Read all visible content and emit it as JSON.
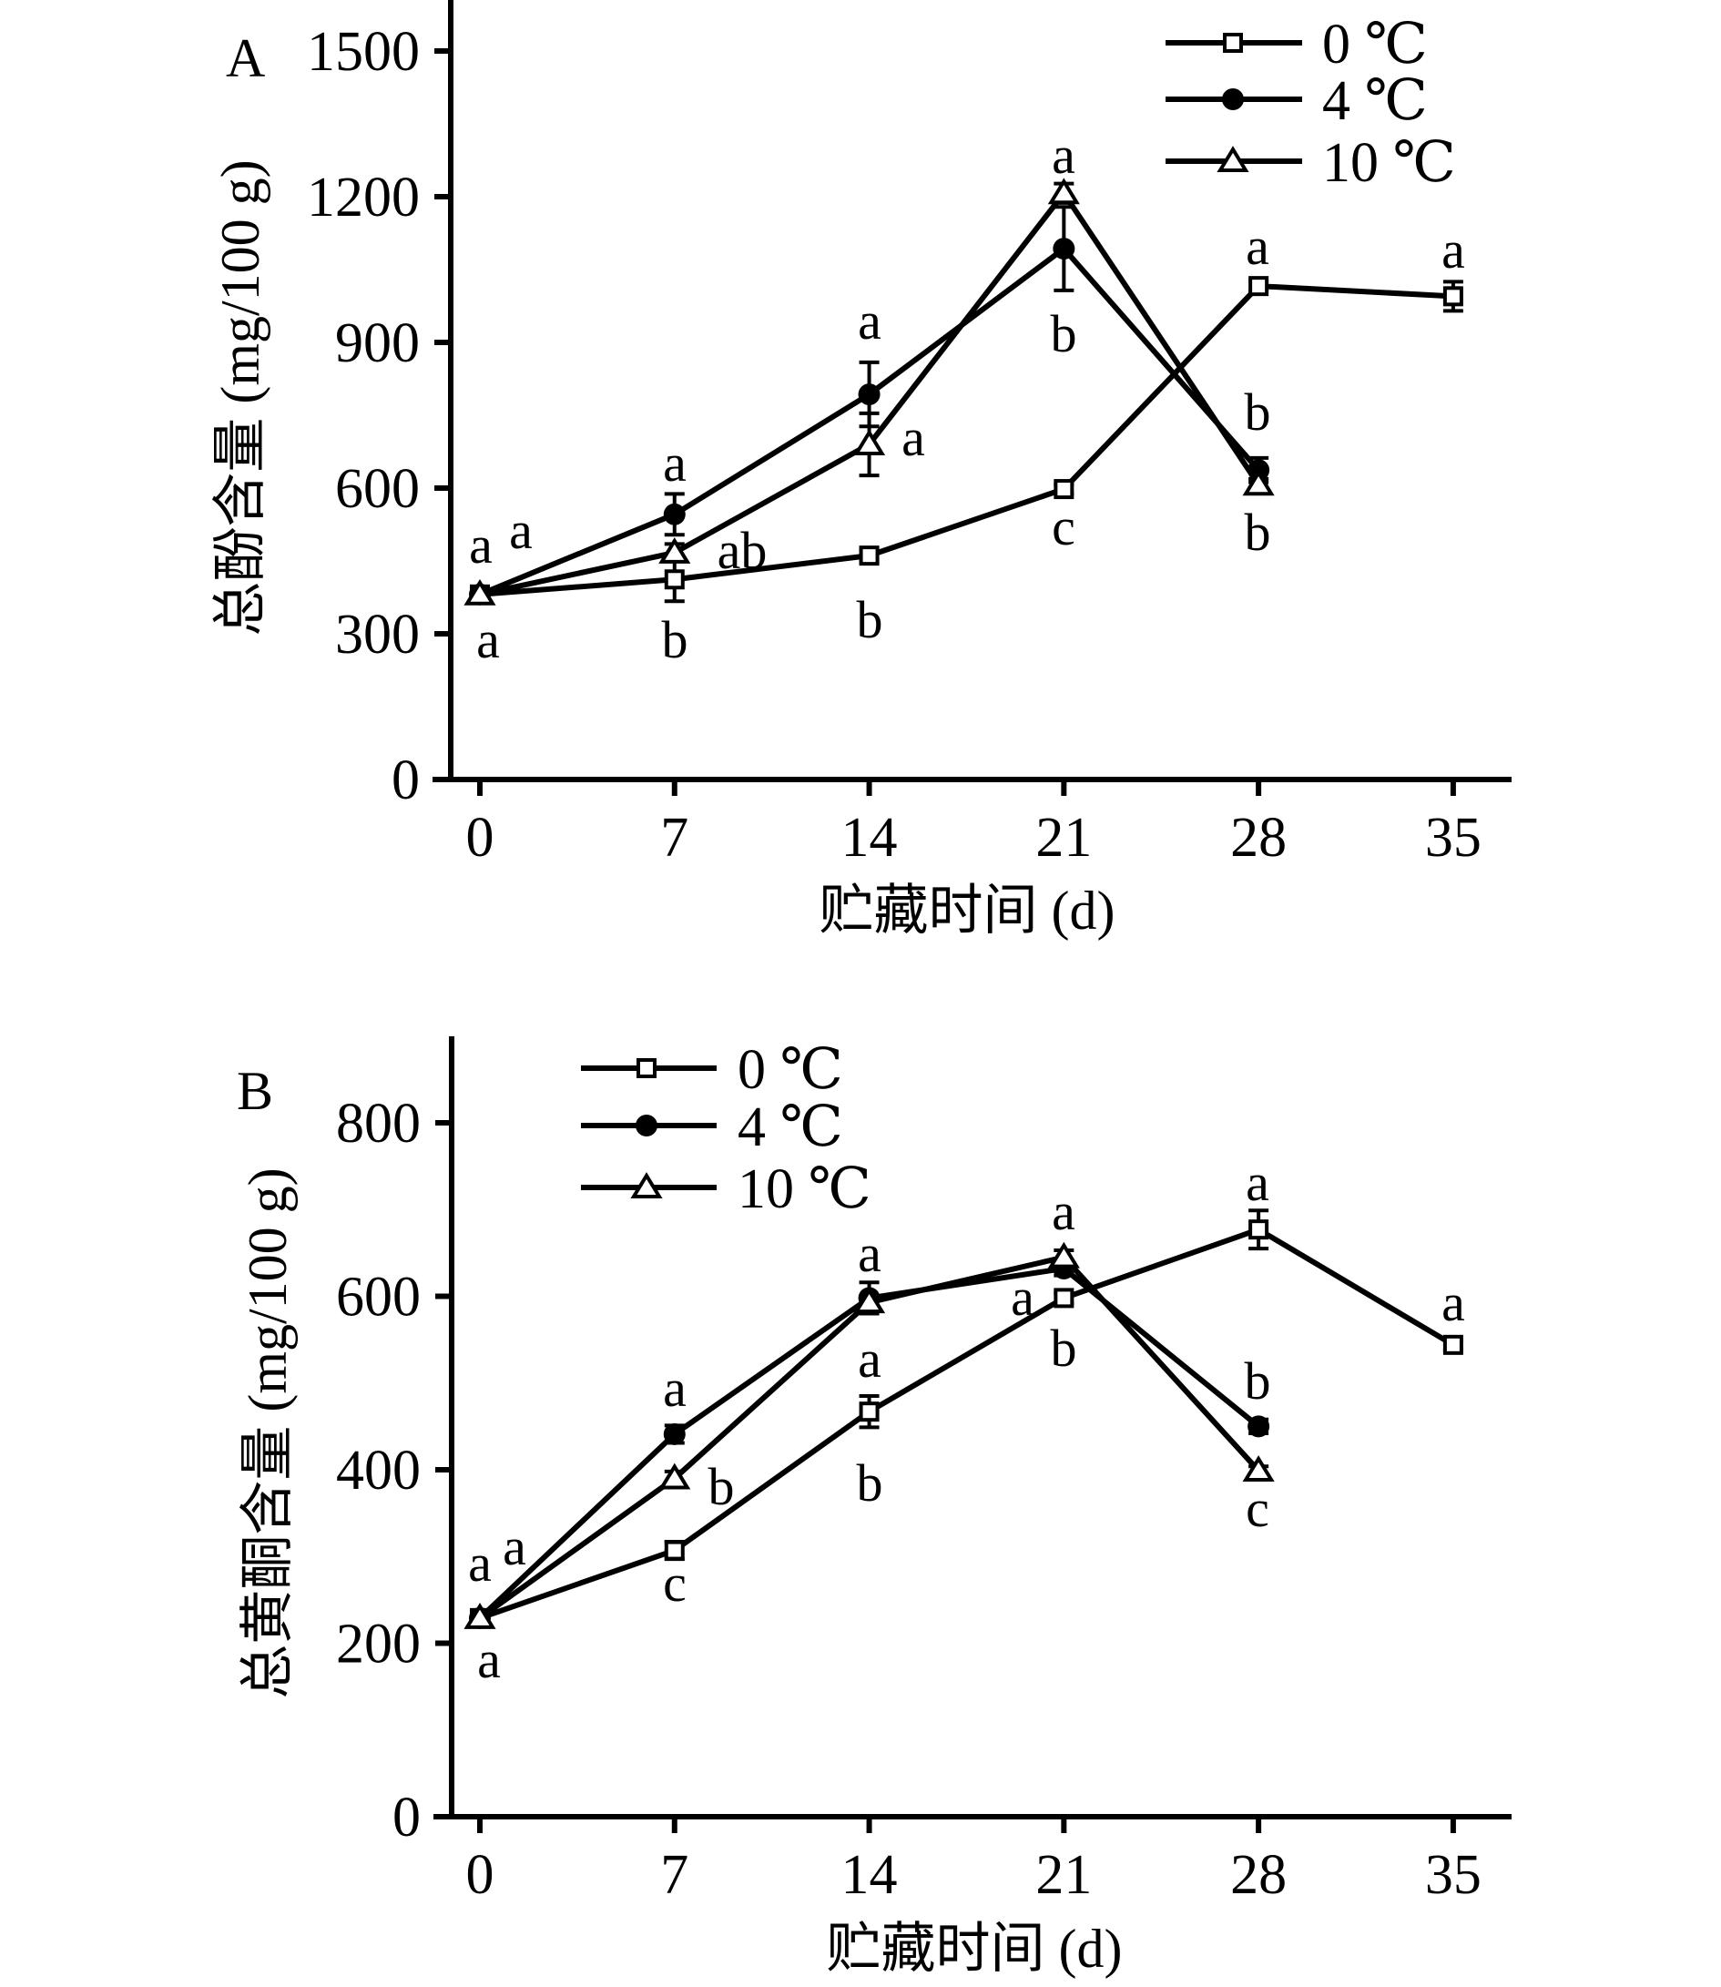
{
  "chart_data": [
    {
      "type": "line",
      "panel_label": "A",
      "xlabel": "贮藏时间 (d)",
      "ylabel": "总酚含量 (mg/100 g)",
      "x": [
        0,
        7,
        14,
        21,
        28,
        35
      ],
      "x_ticks": [
        "0",
        "7",
        "14",
        "21",
        "28",
        "35"
      ],
      "y_ticks": [
        "0",
        "300",
        "600",
        "900",
        "1200",
        "1500"
      ],
      "y_tick_values": [
        0,
        300,
        600,
        900,
        1200,
        1500
      ],
      "xlim": [
        -1,
        37
      ],
      "ylim": [
        0,
        1605
      ],
      "grid": false,
      "legend_position": "top-right",
      "series": [
        {
          "name": "0 ℃",
          "marker": "open-square",
          "x": [
            0,
            7,
            14,
            21,
            28,
            35
          ],
          "values": [
            381,
            412,
            461,
            598,
            1016,
            995
          ],
          "errors": [
            8,
            45,
            12,
            10,
            10,
            30
          ]
        },
        {
          "name": "4 ℃",
          "marker": "filled-circle",
          "x": [
            0,
            7,
            14,
            21,
            28
          ],
          "values": [
            381,
            546,
            793,
            1093,
            637
          ],
          "errors": [
            8,
            42,
            66,
            86,
            25
          ]
        },
        {
          "name": "10 ℃",
          "marker": "open-triangle",
          "x": [
            0,
            7,
            14,
            21,
            28
          ],
          "values": [
            381,
            467,
            690,
            1207,
            607
          ],
          "errors": [
            8,
            18,
            64,
            20,
            12
          ]
        }
      ],
      "annotations": [
        {
          "text": "a",
          "day": 0
        },
        {
          "text": "a",
          "day": 0
        },
        {
          "text": "a",
          "day": 0
        },
        {
          "text": "a",
          "day": 7
        },
        {
          "text": "ab",
          "day": 7
        },
        {
          "text": "b",
          "day": 7
        },
        {
          "text": "a",
          "day": 14
        },
        {
          "text": "a",
          "day": 14
        },
        {
          "text": "b",
          "day": 14
        },
        {
          "text": "a",
          "day": 21
        },
        {
          "text": "b",
          "day": 21
        },
        {
          "text": "c",
          "day": 21
        },
        {
          "text": "a",
          "day": 28
        },
        {
          "text": "b",
          "day": 28
        },
        {
          "text": "b",
          "day": 28
        },
        {
          "text": "a",
          "day": 35
        }
      ]
    },
    {
      "type": "line",
      "panel_label": "B",
      "xlabel": "贮藏时间 (d)",
      "ylabel": "总黄酮含量 (mg/100 g)",
      "x": [
        0,
        7,
        14,
        21,
        28,
        35
      ],
      "x_ticks": [
        "0",
        "7",
        "14",
        "21",
        "28",
        "35"
      ],
      "y_ticks": [
        "0",
        "200",
        "400",
        "600",
        "800"
      ],
      "y_tick_values": [
        0,
        200,
        400,
        600,
        800
      ],
      "xlim": [
        -1,
        37
      ],
      "ylim": [
        0,
        900
      ],
      "grid": false,
      "legend_position": "top-left",
      "series": [
        {
          "name": "0 ℃",
          "marker": "open-square",
          "x": [
            0,
            7,
            14,
            21,
            28,
            35
          ],
          "values": [
            229,
            307,
            467,
            598,
            677,
            544
          ],
          "errors": [
            5,
            10,
            18,
            6,
            22,
            6
          ]
        },
        {
          "name": "4 ℃",
          "marker": "filled-circle",
          "x": [
            0,
            7,
            14,
            21,
            28
          ],
          "values": [
            229,
            441,
            598,
            632,
            450
          ],
          "errors": [
            5,
            10,
            18,
            8,
            8
          ]
        },
        {
          "name": "10 ℃",
          "marker": "open-triangle",
          "x": [
            0,
            7,
            14,
            21,
            28
          ],
          "values": [
            229,
            390,
            593,
            645,
            399
          ],
          "errors": [
            5,
            8,
            6,
            8,
            5
          ]
        }
      ],
      "annotations": [
        {
          "text": "a",
          "day": 0
        },
        {
          "text": "a",
          "day": 0
        },
        {
          "text": "a",
          "day": 0
        },
        {
          "text": "a",
          "day": 7
        },
        {
          "text": "b",
          "day": 7
        },
        {
          "text": "c",
          "day": 7
        },
        {
          "text": "a",
          "day": 14
        },
        {
          "text": "a",
          "day": 14
        },
        {
          "text": "b",
          "day": 14
        },
        {
          "text": "a",
          "day": 21
        },
        {
          "text": "a",
          "day": 21
        },
        {
          "text": "b",
          "day": 21
        },
        {
          "text": "a",
          "day": 28
        },
        {
          "text": "b",
          "day": 28
        },
        {
          "text": "c",
          "day": 28
        },
        {
          "text": "a",
          "day": 35
        }
      ]
    }
  ],
  "colors": {
    "ink": "#000000",
    "background": "#ffffff"
  }
}
